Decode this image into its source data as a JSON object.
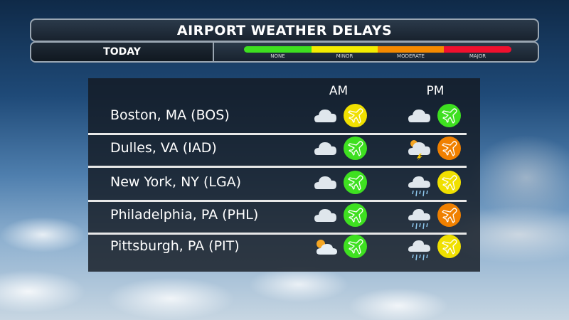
{
  "title": "AIRPORT WEATHER DELAYS",
  "period": "TODAY",
  "legend": [
    {
      "label": "NONE",
      "color": "#3ee020"
    },
    {
      "label": "MINOR",
      "color": "#f4ec00"
    },
    {
      "label": "MODERATE",
      "color": "#f58a00"
    },
    {
      "label": "MAJOR",
      "color": "#f0102e"
    }
  ],
  "columns": {
    "am": "AM",
    "pm": "PM"
  },
  "airports": [
    {
      "name": "Boston, MA (BOS)",
      "am": {
        "weather": "cloudy",
        "delay": "minor"
      },
      "pm": {
        "weather": "cloudy",
        "delay": "none"
      }
    },
    {
      "name": "Dulles, VA (IAD)",
      "am": {
        "weather": "cloudy",
        "delay": "none"
      },
      "pm": {
        "weather": "thunderstorm",
        "delay": "moderate"
      }
    },
    {
      "name": "New York, NY (LGA)",
      "am": {
        "weather": "cloudy",
        "delay": "none"
      },
      "pm": {
        "weather": "rain",
        "delay": "minor"
      }
    },
    {
      "name": "Philadelphia, PA (PHL)",
      "am": {
        "weather": "cloudy",
        "delay": "none"
      },
      "pm": {
        "weather": "rain",
        "delay": "moderate"
      }
    },
    {
      "name": "Pittsburgh, PA (PIT)",
      "am": {
        "weather": "partly-cloudy",
        "delay": "none"
      },
      "pm": {
        "weather": "rain",
        "delay": "minor"
      }
    }
  ],
  "delay_colors": {
    "none": "#3ee020",
    "minor": "#f0e000",
    "moderate": "#f08000",
    "major": "#f0102e"
  }
}
